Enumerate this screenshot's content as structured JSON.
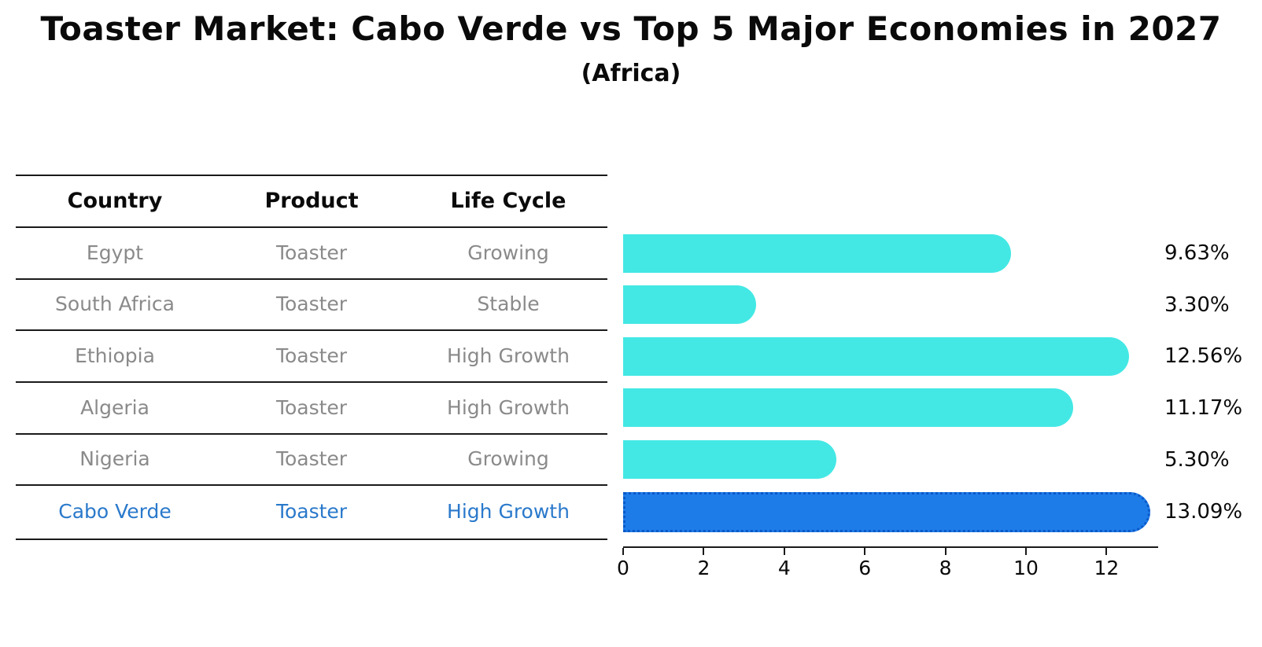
{
  "title": "Toaster Market: Cabo Verde vs Top 5 Major Economies in 2027",
  "subtitle": "(Africa)",
  "table": {
    "headers": [
      "Country",
      "Product",
      "Life Cycle"
    ],
    "rows": [
      {
        "country": "Egypt",
        "product": "Toaster",
        "life_cycle": "Growing"
      },
      {
        "country": "South Africa",
        "product": "Toaster",
        "life_cycle": "Stable"
      },
      {
        "country": "Ethiopia",
        "product": "Toaster",
        "life_cycle": "High Growth"
      },
      {
        "country": "Algeria",
        "product": "Toaster",
        "life_cycle": "High Growth"
      },
      {
        "country": "Nigeria",
        "product": "Toaster",
        "life_cycle": "Growing"
      },
      {
        "country": "Cabo Verde",
        "product": "Toaster",
        "life_cycle": "High Growth"
      }
    ],
    "highlighted_row": "Cabo Verde"
  },
  "chart_data": {
    "type": "bar",
    "orientation": "horizontal",
    "categories": [
      "Egypt",
      "South Africa",
      "Ethiopia",
      "Algeria",
      "Nigeria",
      "Cabo Verde"
    ],
    "values": [
      9.63,
      3.3,
      12.56,
      11.17,
      5.3,
      13.09
    ],
    "value_labels": [
      "9.63%",
      "3.30%",
      "12.56%",
      "11.17%",
      "5.30%",
      "13.09%"
    ],
    "unit": "percent",
    "highlight_index": 5,
    "x_ticks": [
      0,
      2,
      4,
      6,
      8,
      10,
      12
    ],
    "xlim": [
      0,
      13.3
    ],
    "grid": false,
    "legend": "none",
    "bar_color": "#43e8e4",
    "highlight_bar_color": "#1e7ce8",
    "highlight_border_color": "#0a58c8",
    "highlight_text_color": "#2a79cb",
    "muted_text_color": "#8a8a8a"
  }
}
